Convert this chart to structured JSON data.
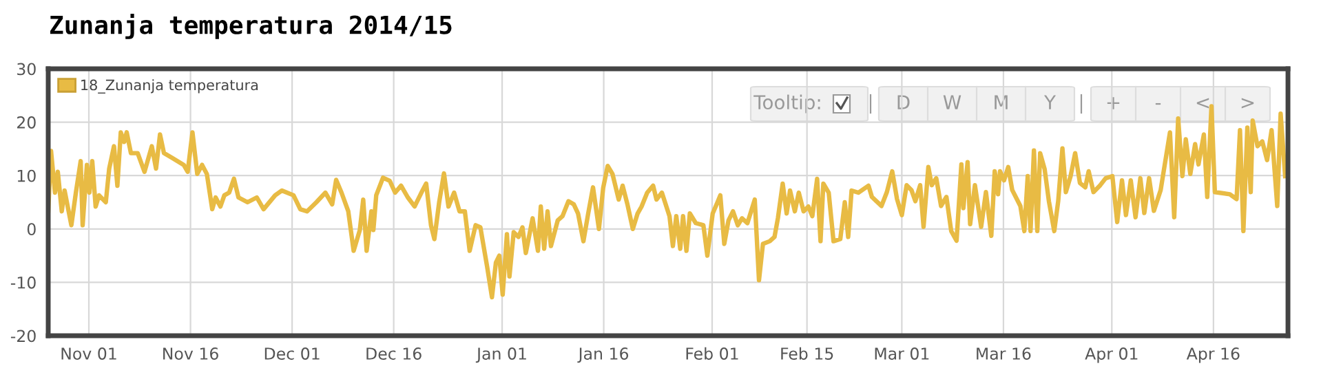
{
  "chart_data": {
    "type": "line",
    "title": "Zunanja temperatura 2014/15",
    "annotations": [
      "Tooltip:",
      "D",
      "W",
      "M",
      "Y",
      "+",
      "-",
      "<",
      ">"
    ],
    "series": [
      {
        "name": "18_Zunanja temperatura",
        "color": "#e8bb44",
        "x": [
          "2014-10-26T00:00",
          "2014-10-26T10:00",
          "2014-10-27T00:00",
          "2014-10-27T10:00",
          "2014-10-28T00:00",
          "2014-10-28T10:00",
          "2014-10-29T10:00",
          "2014-10-30T02:00",
          "2014-10-30T19:00",
          "2014-10-31T02:00",
          "2014-10-31T17:00",
          "2014-11-01T02:00",
          "2014-11-01T12:00",
          "2014-11-02T00:00",
          "2014-11-02T12:00",
          "2014-11-03T12:00",
          "2014-11-04T00:00",
          "2014-11-04T17:00",
          "2014-11-05T05:00",
          "2014-11-05T17:00",
          "2014-11-06T05:00",
          "2014-11-06T14:00",
          "2014-11-07T05:00",
          "2014-11-08T05:00",
          "2014-11-09T05:00",
          "2014-11-10T07:00",
          "2014-11-10T22:00",
          "2014-11-11T12:00",
          "2014-11-12T02:00",
          "2014-11-13T07:00",
          "2014-11-15T00:00",
          "2014-11-15T14:00",
          "2014-11-16T07:00",
          "2014-11-17T00:00",
          "2014-11-17T17:00",
          "2014-11-18T10:00",
          "2014-11-19T05:00",
          "2014-11-19T17:00",
          "2014-11-20T10:00",
          "2014-11-21T00:00",
          "2014-11-21T17:00",
          "2014-11-22T10:00",
          "2014-11-23T02:00",
          "2014-11-24T10:00",
          "2014-11-25T19:00",
          "2014-11-26T19:00",
          "2014-11-28T12:00",
          "2014-11-29T12:00",
          "2014-12-01T05:00",
          "2014-12-02T05:00",
          "2014-12-03T05:00",
          "2014-12-04T14:00",
          "2014-12-05T22:00",
          "2014-12-06T22:00",
          "2014-12-07T12:00",
          "2014-12-08T07:00",
          "2014-12-09T07:00",
          "2014-12-10T02:00",
          "2014-12-11T00:00",
          "2014-12-11T12:00",
          "2014-12-12T00:00",
          "2014-12-12T17:00",
          "2014-12-13T00:00",
          "2014-12-13T10:00",
          "2014-12-14T10:00",
          "2014-12-15T10:00",
          "2014-12-16T05:00",
          "2014-12-17T02:00",
          "2014-12-18T02:00",
          "2014-12-19T02:00",
          "2014-12-20T02:00",
          "2014-12-20T19:00",
          "2014-12-21T12:00",
          "2014-12-22T00:00",
          "2014-12-22T17:00",
          "2014-12-23T10:00",
          "2014-12-24T02:00",
          "2014-12-24T22:00",
          "2014-12-25T17:00",
          "2014-12-26T12:00",
          "2014-12-27T05:00",
          "2014-12-28T02:00",
          "2014-12-28T19:00",
          "2014-12-29T19:00",
          "2014-12-30T12:00",
          "2014-12-31T02:00",
          "2014-12-31T14:00",
          "2015-01-01T02:00",
          "2015-01-01T17:00",
          "2015-01-02T02:00",
          "2015-01-02T17:00",
          "2015-01-03T10:00",
          "2015-01-04T00:00",
          "2015-01-04T12:00",
          "2015-01-05T12:00",
          "2015-01-06T07:00",
          "2015-01-06T17:00",
          "2015-01-07T05:00",
          "2015-01-07T17:00",
          "2015-01-08T05:00",
          "2015-01-09T05:00",
          "2015-01-09T22:00",
          "2015-01-10T19:00",
          "2015-01-11T14:00",
          "2015-01-12T05:00",
          "2015-01-13T00:00",
          "2015-01-13T17:00",
          "2015-01-14T10:00",
          "2015-01-15T07:00",
          "2015-01-15T22:00",
          "2015-01-16T14:00",
          "2015-01-17T07:00",
          "2015-01-18T05:00",
          "2015-01-18T19:00",
          "2015-01-19T12:00",
          "2015-01-20T07:00",
          "2015-01-21T00:00",
          "2015-01-21T14:00",
          "2015-01-22T10:00",
          "2015-01-23T07:00",
          "2015-01-23T19:00",
          "2015-01-24T14:00",
          "2015-01-25T17:00",
          "2015-01-26T05:00",
          "2015-01-26T17:00",
          "2015-01-27T07:00",
          "2015-01-27T17:00",
          "2015-01-28T05:00",
          "2015-01-28T17:00",
          "2015-01-29T14:00",
          "2015-01-30T17:00",
          "2015-01-31T07:00",
          "2015-02-01T02:00",
          "2015-02-01T19:00",
          "2015-02-02T05:00",
          "2015-02-02T19:00",
          "2015-02-03T10:00",
          "2015-02-04T02:00",
          "2015-02-04T19:00",
          "2015-02-05T10:00",
          "2015-02-06T05:00",
          "2015-02-07T07:00",
          "2015-02-07T22:00",
          "2015-02-08T12:00",
          "2015-02-09T12:00",
          "2015-02-10T05:00",
          "2015-02-10T17:00",
          "2015-02-11T10:00",
          "2015-02-12T00:00",
          "2015-02-12T12:00",
          "2015-02-13T05:00",
          "2015-02-13T19:00",
          "2015-02-14T12:00",
          "2015-02-15T05:00",
          "2015-02-15T19:00",
          "2015-02-16T12:00",
          "2015-02-17T00:00",
          "2015-02-17T10:00",
          "2015-02-18T05:00",
          "2015-02-18T22:00",
          "2015-02-19T22:00",
          "2015-02-20T14:00",
          "2015-02-21T02:00",
          "2015-02-21T14:00",
          "2015-02-22T14:00",
          "2015-02-24T02:00",
          "2015-02-24T14:00",
          "2015-02-26T00:00",
          "2015-02-26T19:00",
          "2015-02-27T14:00",
          "2015-02-28T07:00",
          "2015-03-01T00:00",
          "2015-03-01T17:00",
          "2015-03-02T10:00",
          "2015-03-03T00:00",
          "2015-03-03T17:00",
          "2015-03-04T05:00",
          "2015-03-04T22:00",
          "2015-03-05T10:00",
          "2015-03-06T02:00",
          "2015-03-06T19:00",
          "2015-03-07T14:00",
          "2015-03-08T07:00",
          "2015-03-09T02:00",
          "2015-03-09T19:00",
          "2015-03-10T02:00",
          "2015-03-10T17:00",
          "2015-03-11T02:00",
          "2015-03-11T19:00",
          "2015-03-12T17:00",
          "2015-03-13T10:00",
          "2015-03-14T05:00",
          "2015-03-14T17:00",
          "2015-03-15T05:00",
          "2015-03-15T12:00",
          "2015-03-16T02:00",
          "2015-03-16T17:00",
          "2015-03-17T07:00",
          "2015-03-18T12:00",
          "2015-03-19T02:00",
          "2015-03-19T14:00",
          "2015-03-20T00:00",
          "2015-03-20T12:00",
          "2015-03-21T00:00",
          "2015-03-21T10:00",
          "2015-03-22T02:00",
          "2015-03-22T17:00",
          "2015-03-23T12:00",
          "2015-03-24T02:00",
          "2015-03-24T17:00",
          "2015-03-25T05:00",
          "2015-03-25T22:00",
          "2015-03-26T14:00",
          "2015-03-27T07:00",
          "2015-03-28T02:00",
          "2015-03-28T14:00",
          "2015-03-29T07:00",
          "2015-03-30T07:00",
          "2015-03-31T02:00",
          "2015-04-01T02:00",
          "2015-04-01T19:00",
          "2015-04-02T12:00",
          "2015-04-03T02:00",
          "2015-04-03T19:00",
          "2015-04-04T12:00",
          "2015-04-05T05:00",
          "2015-04-05T19:00",
          "2015-04-06T12:00",
          "2015-04-07T05:00",
          "2015-04-08T05:00",
          "2015-04-09T14:00",
          "2015-04-10T05:00",
          "2015-04-10T19:00",
          "2015-04-11T10:00",
          "2015-04-11T22:00",
          "2015-04-12T14:00",
          "2015-04-13T07:00",
          "2015-04-13T19:00",
          "2015-04-14T14:00",
          "2015-04-15T02:00",
          "2015-04-15T17:00",
          "2015-04-16T05:00",
          "2015-04-18T10:00",
          "2015-04-19T10:00",
          "2015-04-19T22:00",
          "2015-04-20T10:00",
          "2015-04-21T00:00",
          "2015-04-21T12:00",
          "2015-04-21T19:00",
          "2015-04-22T12:00",
          "2015-04-23T05:00",
          "2015-04-23T22:00",
          "2015-04-24T14:00",
          "2015-04-25T10:00",
          "2015-04-25T22:00",
          "2015-04-26T14:00"
        ],
        "values": [
          3.3,
          14.6,
          6.8,
          10.7,
          3.3,
          7.2,
          0.7,
          6.8,
          12.7,
          0.7,
          12,
          6.8,
          12.7,
          4.2,
          6.3,
          5,
          11.3,
          15.5,
          8.1,
          18.1,
          16.3,
          18.1,
          14.2,
          14.2,
          10.7,
          15.5,
          11.3,
          17.7,
          14.2,
          13.3,
          12,
          10.7,
          18.1,
          10.3,
          12,
          10.3,
          3.7,
          5.9,
          4.2,
          6.3,
          6.8,
          9.4,
          5.9,
          5,
          5.9,
          3.7,
          6.3,
          7.2,
          6.3,
          3.7,
          3.3,
          5,
          6.8,
          4.6,
          9.2,
          6.8,
          3.3,
          -4.1,
          -0.2,
          5.5,
          -4.1,
          3.3,
          -0.2,
          6.3,
          9.6,
          9,
          6.8,
          8.1,
          5.9,
          4.2,
          6.8,
          8.5,
          0.7,
          -1.9,
          5,
          10.4,
          4.2,
          6.8,
          3.3,
          3.3,
          -4.1,
          0.7,
          0.3,
          -7.1,
          -12.8,
          -6.3,
          -5,
          -12.3,
          -1,
          -8.9,
          -0.6,
          -1.5,
          0.3,
          -4.5,
          2,
          -4.1,
          4.2,
          -3.7,
          3.3,
          -3.2,
          1.6,
          2.4,
          5.2,
          4.6,
          2.9,
          -2.3,
          2.9,
          7.8,
          0,
          7.7,
          11.8,
          10.3,
          5.5,
          8.1,
          4.6,
          0,
          2.9,
          4.2,
          6.8,
          8.1,
          5.5,
          6.8,
          2.4,
          -3.2,
          2.4,
          -3.7,
          2.4,
          -4.1,
          2.9,
          1.1,
          0.7,
          -5,
          2.9,
          5,
          6.3,
          -2.8,
          1.6,
          3.3,
          0.7,
          2,
          1.1,
          5.5,
          -9.6,
          -2.8,
          -2.3,
          -1.5,
          2,
          8.5,
          2.9,
          7.2,
          3.3,
          6.8,
          3.3,
          4.2,
          2.4,
          9.4,
          -2.3,
          8.5,
          6.8,
          -2.3,
          -1.9,
          5,
          -1.5,
          7.2,
          6.8,
          8.1,
          6,
          4.3,
          6.9,
          10.8,
          5.6,
          2.6,
          8.2,
          7.3,
          5.2,
          8.2,
          0.4,
          11.6,
          8.2,
          9.5,
          4.3,
          6,
          -0.4,
          -2.2,
          12.1,
          3.9,
          12.5,
          0.9,
          8.2,
          0.4,
          6.9,
          -1.3,
          10.8,
          6.5,
          10.8,
          9.1,
          11.6,
          7.3,
          4.3,
          -0.4,
          9.9,
          -0.4,
          14.7,
          -0.4,
          14.2,
          11.2,
          5.2,
          -0.4,
          5.2,
          15.1,
          6.9,
          9.9,
          14.2,
          8.6,
          7.8,
          10.8,
          6.9,
          8.2,
          9.5,
          9.9,
          1.3,
          9.1,
          2.6,
          9.1,
          2.2,
          9.5,
          3,
          9.5,
          3.4,
          7.3,
          18.1,
          2.2,
          20.7,
          9.9,
          16.8,
          10.3,
          15.9,
          12.1,
          17.7,
          6,
          23,
          6.9,
          6.5,
          5.6,
          18.5,
          -0.4,
          19,
          6.9,
          20.3,
          15.5,
          16.4,
          12.9,
          18.5,
          4.3,
          21.6,
          9.9
        ]
      }
    ],
    "xlim": [
      "2014-10-26T00:00",
      "2015-04-27T00:00"
    ],
    "xticks": [
      {
        "value": "2014-11-01",
        "label": "Nov 01"
      },
      {
        "value": "2014-11-16",
        "label": "Nov 16"
      },
      {
        "value": "2014-12-01",
        "label": "Dec 01"
      },
      {
        "value": "2014-12-16",
        "label": "Dec 16"
      },
      {
        "value": "2015-01-01",
        "label": "Jan 01"
      },
      {
        "value": "2015-01-16",
        "label": "Jan 16"
      },
      {
        "value": "2015-02-01",
        "label": "Feb 01"
      },
      {
        "value": "2015-02-15",
        "label": "Feb 15"
      },
      {
        "value": "2015-03-01",
        "label": "Mar 01"
      },
      {
        "value": "2015-03-16",
        "label": "Mar 16"
      },
      {
        "value": "2015-04-01",
        "label": "Apr 01"
      },
      {
        "value": "2015-04-16",
        "label": "Apr 16"
      }
    ],
    "ylim": [
      -20,
      30
    ],
    "yticks": [
      -20,
      -10,
      0,
      10,
      20,
      30
    ],
    "grid": true,
    "legend": "top left",
    "marker": "none",
    "line_style": "solid"
  }
}
